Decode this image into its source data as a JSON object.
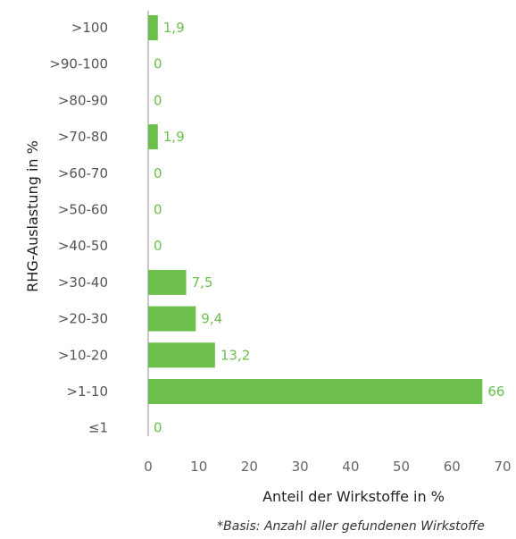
{
  "colors": {
    "bar": "#6cbf4d",
    "axis": "#b5b5b5",
    "value_label": "#6cbf4d"
  },
  "chart_data": {
    "type": "bar",
    "orientation": "horizontal",
    "categories": [
      ">100",
      ">90-100",
      ">80-90",
      ">70-80",
      ">60-70",
      ">50-60",
      ">40-50",
      ">30-40",
      ">20-30",
      ">10-20",
      ">1-10",
      "≤1"
    ],
    "values": [
      1.9,
      0,
      0,
      1.9,
      0,
      0,
      0,
      7.5,
      9.4,
      13.2,
      66,
      0
    ],
    "value_labels": [
      "1,9",
      "0",
      "0",
      "1,9",
      "0",
      "0",
      "0",
      "7,5",
      "9,4",
      "13,2",
      "66",
      "0"
    ],
    "xlabel": "Anteil der Wirkstoffe in %",
    "ylabel": "RHG-Auslastung in %",
    "xlim": [
      0,
      70
    ],
    "xticks": [
      0,
      10,
      20,
      30,
      40,
      50,
      60,
      70
    ],
    "grid": false,
    "footnote": "*Basis: Anzahl aller gefundenen Wirkstoffe"
  }
}
